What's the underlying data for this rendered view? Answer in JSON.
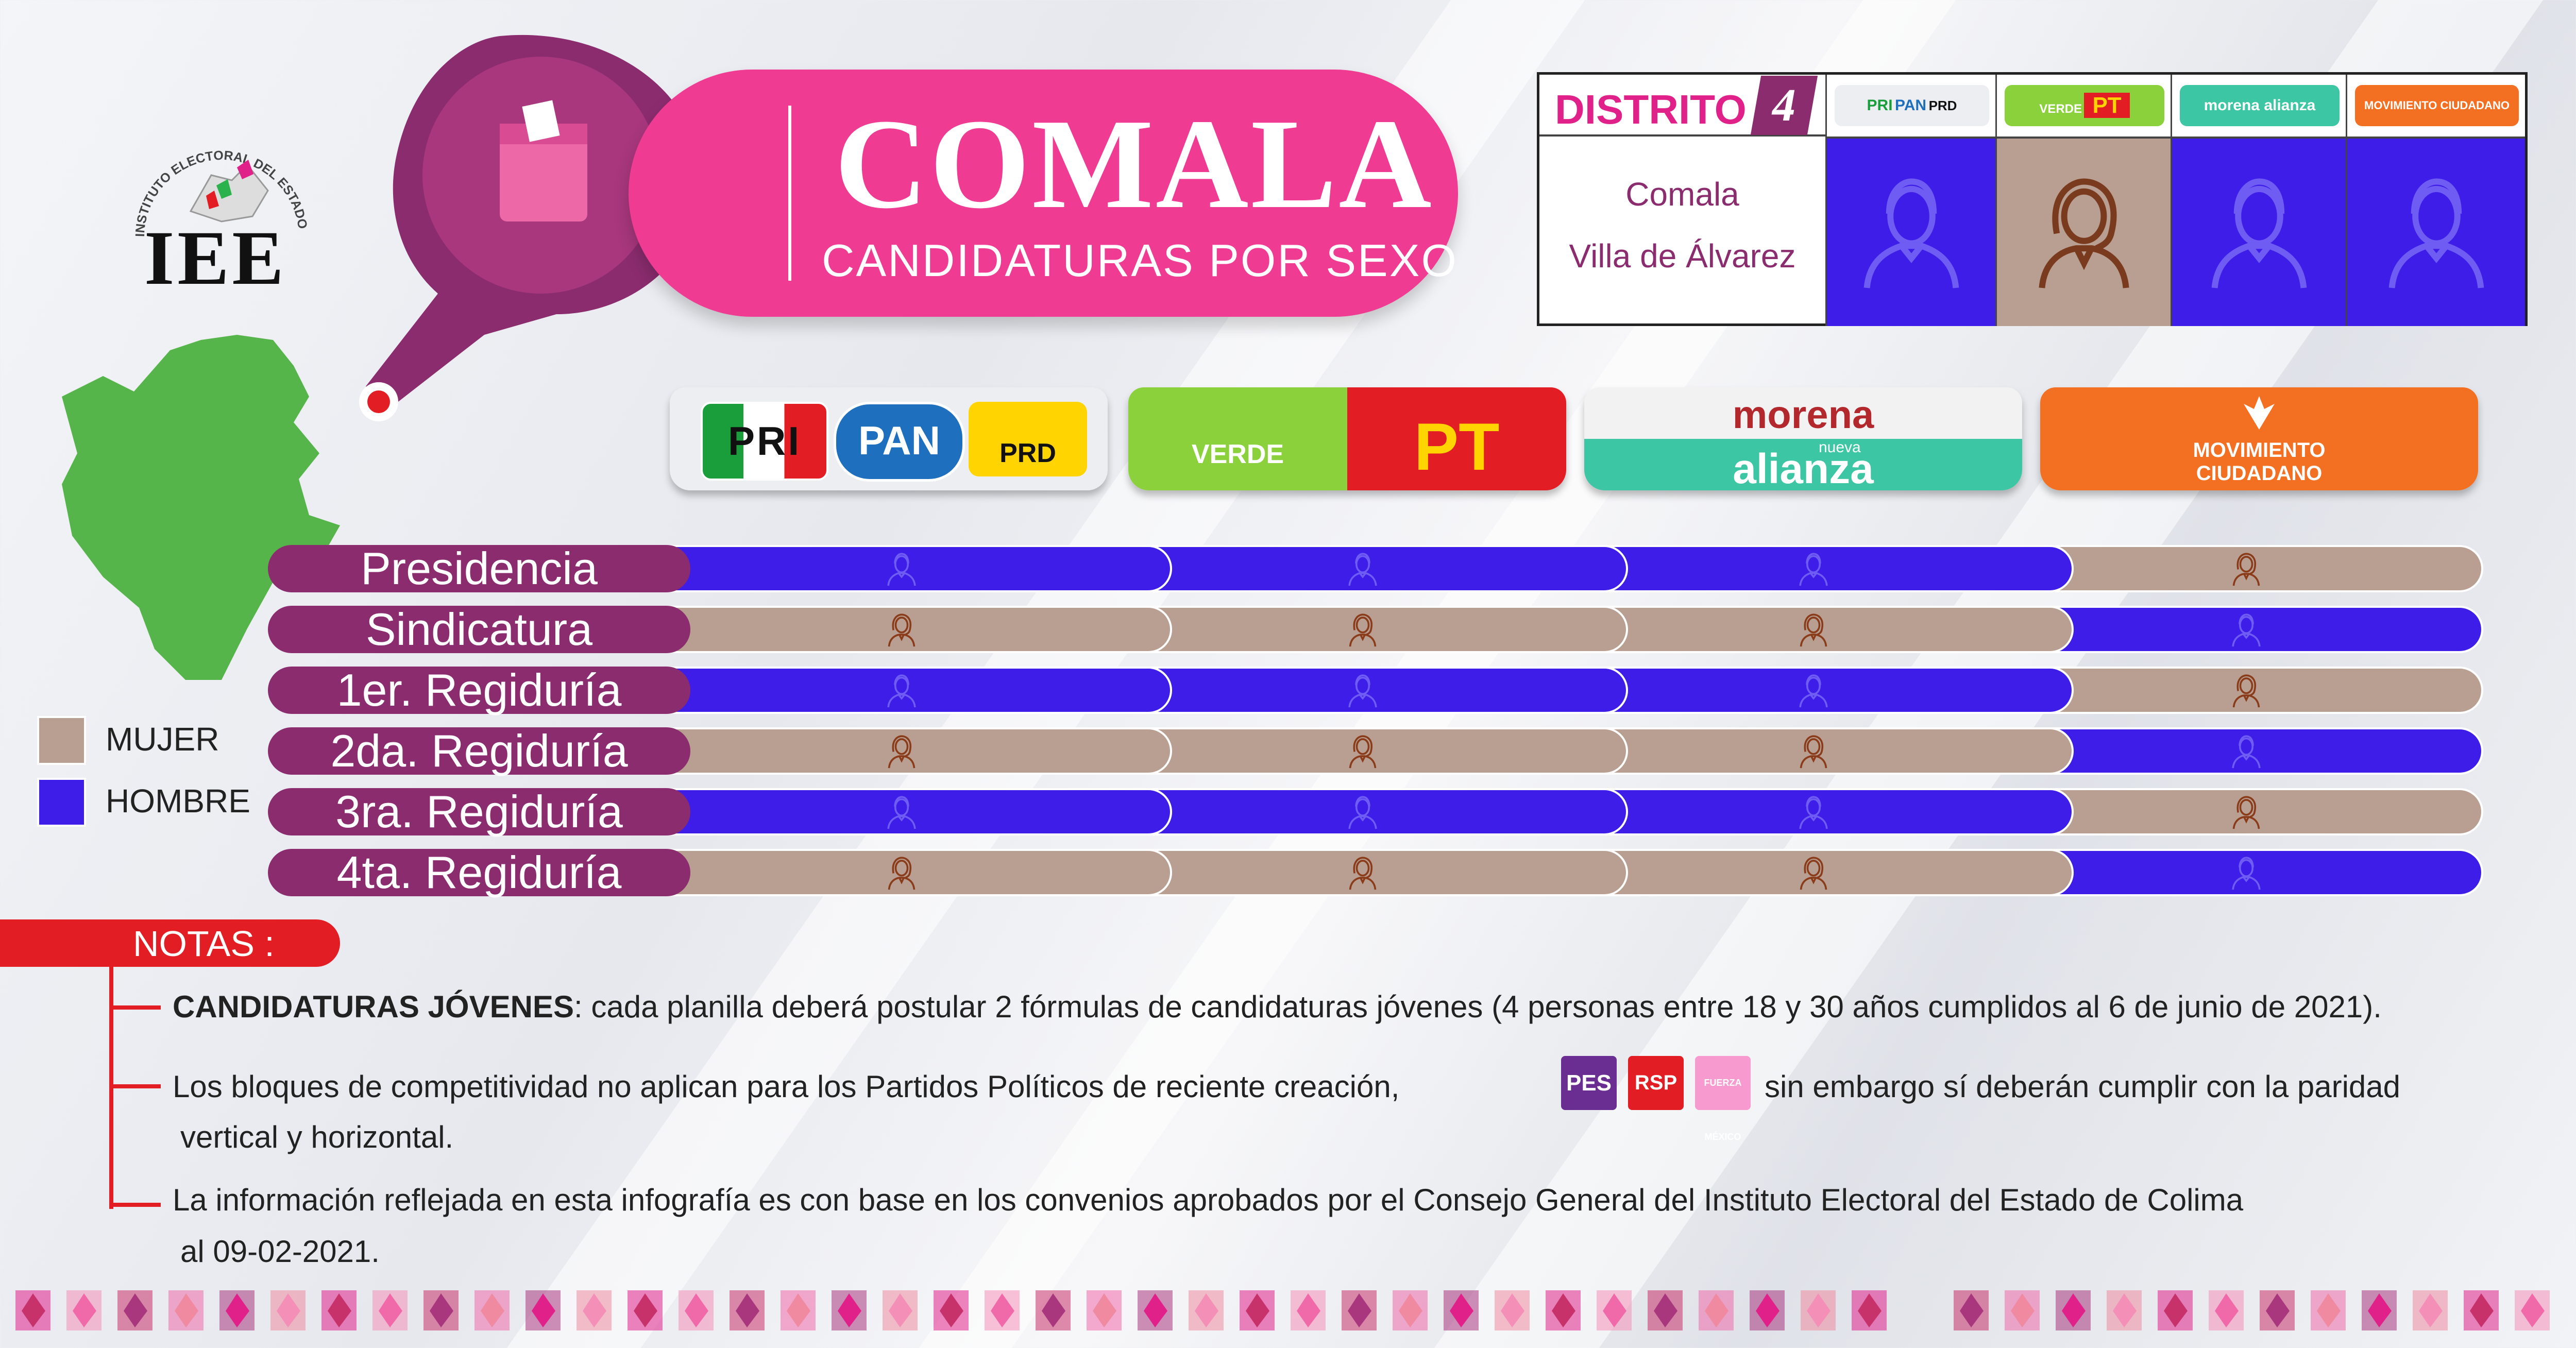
{
  "header": {
    "institute_name": "INSTITUTO ELECTORAL DEL ESTADO DE COLIMA",
    "logo_text": "IEE",
    "title": "COMALA",
    "subtitle": "CANDIDATURAS POR SEXO"
  },
  "district": {
    "label": "DISTRITO",
    "number": "4",
    "municipalities": [
      "Comala",
      "Villa de Álvarez"
    ],
    "candidates": [
      "HOMBRE",
      "MUJER",
      "HOMBRE",
      "HOMBRE"
    ]
  },
  "parties": [
    {
      "name": "PRI PAN PRD",
      "logos": [
        "PRI",
        "PAN",
        "PRD"
      ]
    },
    {
      "name": "VERDE PT",
      "logos": [
        "VERDE",
        "PT"
      ]
    },
    {
      "name": "morena nueva alianza",
      "logos": [
        "morena",
        "nueva",
        "alianza"
      ]
    },
    {
      "name": "MOVIMIENTO CIUDADANO",
      "logos": [
        "MOVIMIENTO",
        "CIUDADANO"
      ]
    }
  ],
  "legend": {
    "mujer": "MUJER",
    "hombre": "HOMBRE"
  },
  "colors": {
    "mujer": "#b89f91",
    "hombre": "#3e1de8",
    "accent": "#ef3c92",
    "label_bg": "#8b2c6f",
    "notes": "#e21d23"
  },
  "positions": [
    {
      "label": "Presidencia",
      "values": [
        "HOMBRE",
        "HOMBRE",
        "HOMBRE",
        "MUJER"
      ]
    },
    {
      "label": "Sindicatura",
      "values": [
        "MUJER",
        "MUJER",
        "MUJER",
        "HOMBRE"
      ]
    },
    {
      "label": "1er. Regiduría",
      "values": [
        "HOMBRE",
        "HOMBRE",
        "HOMBRE",
        "MUJER"
      ]
    },
    {
      "label": "2da. Regiduría",
      "values": [
        "MUJER",
        "MUJER",
        "MUJER",
        "HOMBRE"
      ]
    },
    {
      "label": "3ra. Regiduría",
      "values": [
        "HOMBRE",
        "HOMBRE",
        "HOMBRE",
        "MUJER"
      ]
    },
    {
      "label": "4ta. Regiduría",
      "values": [
        "MUJER",
        "MUJER",
        "MUJER",
        "HOMBRE"
      ]
    }
  ],
  "notes": {
    "title": "NOTAS :",
    "n1_bold": "CANDIDATURAS JÓVENES",
    "n1_text": ": cada planilla deberá postular 2 fórmulas de candidaturas jóvenes (4 personas entre 18 y 30 años cumplidos al 6 de junio de 2021).",
    "n2_a": "Los bloques de competitividad no aplican para los Partidos Políticos de reciente creación,",
    "n2_b": "sin embargo sí deberán cumplir con la paridad",
    "n2_c": "vertical y  horizontal.",
    "n2_logos": [
      "PES",
      "RSP",
      "FUERZA MÉXICO"
    ],
    "n3_a": "La información reflejada en esta infografía es con base en los convenios aprobados  por el Consejo General del Instituto Electoral del Estado de Colima",
    "n3_b": "al 09-02-2021."
  }
}
